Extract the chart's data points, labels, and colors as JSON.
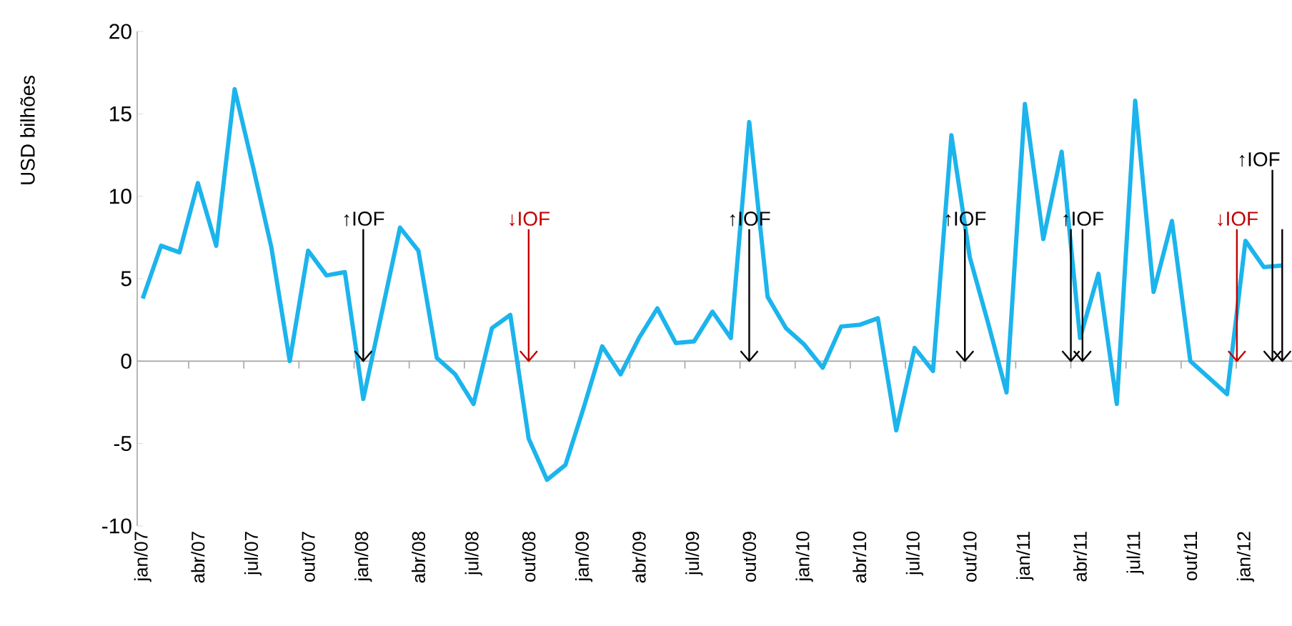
{
  "chart_data": {
    "type": "line",
    "ylabel": "USD bilhões",
    "x": [
      "2007-01",
      "2007-02",
      "2007-03",
      "2007-04",
      "2007-05",
      "2007-06",
      "2007-07",
      "2007-08",
      "2007-09",
      "2007-10",
      "2007-11",
      "2007-12",
      "2008-01",
      "2008-02",
      "2008-03",
      "2008-04",
      "2008-05",
      "2008-06",
      "2008-07",
      "2008-08",
      "2008-09",
      "2008-10",
      "2008-11",
      "2008-12",
      "2009-01",
      "2009-02",
      "2009-03",
      "2009-04",
      "2009-05",
      "2009-06",
      "2009-07",
      "2009-08",
      "2009-09",
      "2009-10",
      "2009-11",
      "2009-12",
      "2010-01",
      "2010-02",
      "2010-03",
      "2010-04",
      "2010-05",
      "2010-06",
      "2010-07",
      "2010-08",
      "2010-09",
      "2010-10",
      "2010-11",
      "2010-12",
      "2011-01",
      "2011-02",
      "2011-03",
      "2011-04",
      "2011-05",
      "2011-06",
      "2011-07",
      "2011-08",
      "2011-09",
      "2011-10",
      "2011-11",
      "2011-12",
      "2012-01",
      "2012-02",
      "2012-03"
    ],
    "values": [
      3.8,
      7.0,
      6.6,
      10.8,
      7.0,
      16.5,
      11.8,
      6.9,
      0.0,
      6.7,
      5.2,
      5.4,
      -2.3,
      2.9,
      8.1,
      6.7,
      0.2,
      -0.8,
      -2.6,
      2.0,
      2.8,
      -4.7,
      -7.2,
      -6.3,
      -2.8,
      0.9,
      -0.8,
      1.4,
      3.2,
      1.1,
      1.2,
      3.0,
      1.4,
      14.5,
      3.9,
      2.0,
      1.0,
      -0.4,
      2.1,
      2.2,
      2.6,
      -4.2,
      0.8,
      -0.6,
      13.7,
      6.3,
      2.3,
      -1.9,
      15.6,
      7.4,
      12.7,
      1.4,
      5.3,
      -2.6,
      15.8,
      4.2,
      8.5,
      0.0,
      -1.0,
      -2.0,
      7.3,
      5.7,
      5.8
    ],
    "color": "#1cb4ec",
    "xlim": [
      "2006-12-22",
      "2012-03-17"
    ],
    "xticks": [
      {
        "value": "2007-01",
        "label": "jan/07"
      },
      {
        "value": "2007-03-16",
        "label": null
      },
      {
        "value": "2007-04",
        "label": "abr/07"
      },
      {
        "value": "2007-06-16",
        "label": null
      },
      {
        "value": "2007-07",
        "label": "jul/07"
      },
      {
        "value": "2007-09-16",
        "label": null
      },
      {
        "value": "2007-10",
        "label": "out/07"
      },
      {
        "value": "2007-12-16",
        "label": null
      },
      {
        "value": "2008-01",
        "label": "jan/08"
      },
      {
        "value": "2008-03-16",
        "label": null
      },
      {
        "value": "2008-04",
        "label": "abr/08"
      },
      {
        "value": "2008-06-16",
        "label": null
      },
      {
        "value": "2008-07",
        "label": "jul/08"
      },
      {
        "value": "2008-09-16",
        "label": null
      },
      {
        "value": "2008-10",
        "label": "out/08"
      },
      {
        "value": "2008-12-16",
        "label": null
      },
      {
        "value": "2009-01",
        "label": "jan/09"
      },
      {
        "value": "2009-03-16",
        "label": null
      },
      {
        "value": "2009-04",
        "label": "abr/09"
      },
      {
        "value": "2009-06-16",
        "label": null
      },
      {
        "value": "2009-07",
        "label": "jul/09"
      },
      {
        "value": "2009-09-16",
        "label": null
      },
      {
        "value": "2009-10",
        "label": "out/09"
      },
      {
        "value": "2009-12-16",
        "label": null
      },
      {
        "value": "2010-01",
        "label": "jan/10"
      },
      {
        "value": "2010-03-16",
        "label": null
      },
      {
        "value": "2010-04",
        "label": "abr/10"
      },
      {
        "value": "2010-06-16",
        "label": null
      },
      {
        "value": "2010-07",
        "label": "jul/10"
      },
      {
        "value": "2010-09-16",
        "label": null
      },
      {
        "value": "2010-10",
        "label": "out/10"
      },
      {
        "value": "2010-12-16",
        "label": null
      },
      {
        "value": "2011-01",
        "label": "jan/11"
      },
      {
        "value": "2011-03-16",
        "label": null
      },
      {
        "value": "2011-04",
        "label": "abr/11"
      },
      {
        "value": "2011-06-16",
        "label": null
      },
      {
        "value": "2011-07",
        "label": "jul/11"
      },
      {
        "value": "2011-09-16",
        "label": null
      },
      {
        "value": "2011-10",
        "label": "out/11"
      },
      {
        "value": "2011-12-16",
        "label": null
      },
      {
        "value": "2012-01",
        "label": "jan/12"
      }
    ],
    "ylim": [
      -10,
      20
    ],
    "yticks": [
      -10,
      -5,
      0,
      5,
      10,
      15,
      20
    ],
    "ref_lines": [
      {
        "axis": "x",
        "value": "2008-01",
        "label": "↑IOF",
        "color": "#000000"
      },
      {
        "axis": "x",
        "value": "2008-10",
        "label": "↓IOF",
        "color": "#c00000"
      },
      {
        "axis": "x",
        "value": "2009-10",
        "label": "↑IOF",
        "color": "#000000"
      },
      {
        "axis": "x",
        "value": "2010-09-23",
        "label": "↑IOF",
        "color": "#000000"
      },
      {
        "axis": "x",
        "value": "2011-03-16",
        "color": "#000000"
      },
      {
        "axis": "x",
        "value": "2011-04-05",
        "label": "↑IOF",
        "color": "#000000"
      },
      {
        "axis": "x",
        "value": "2011-12-17",
        "label": "↓IOF",
        "color": "#c00000"
      },
      {
        "axis": "x",
        "value": "2012-02-15",
        "label": "↑IOF",
        "color": "#000000"
      },
      {
        "axis": "x",
        "value": "2012-03-01",
        "color": "#000000"
      }
    ]
  }
}
